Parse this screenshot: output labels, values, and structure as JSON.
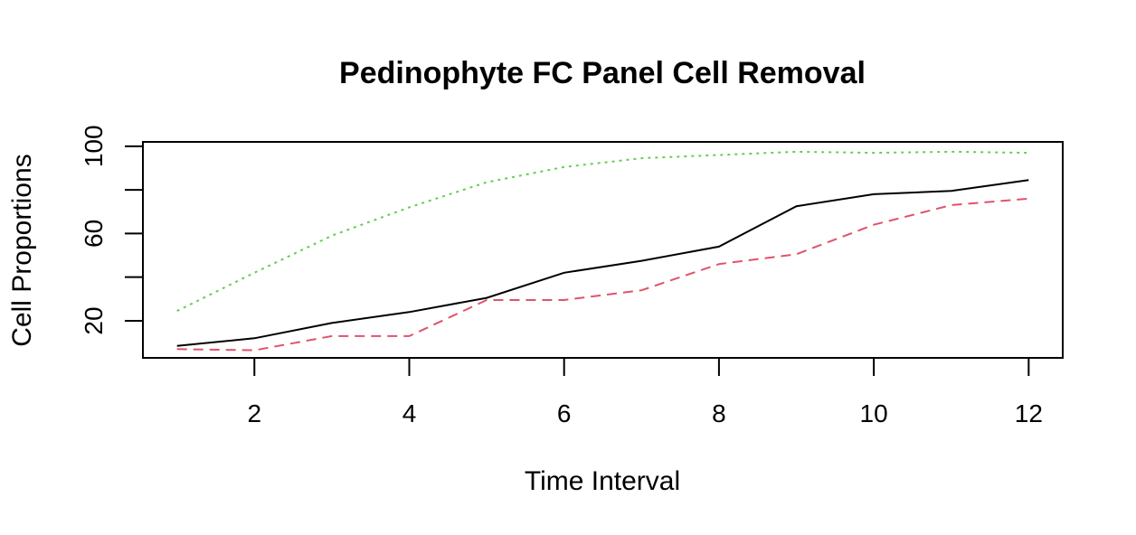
{
  "chart_data": {
    "type": "line",
    "title": "Pedinophyte FC Panel Cell Removal",
    "xlabel": "Time Interval",
    "ylabel": "Cell Proportions",
    "x": [
      1,
      2,
      3,
      4,
      5,
      6,
      7,
      8,
      9,
      10,
      11,
      12
    ],
    "xlim": [
      0.56,
      12.44
    ],
    "ylim": [
      3,
      102
    ],
    "x_ticks": [
      2,
      4,
      6,
      8,
      10,
      12
    ],
    "y_ticks": [
      20,
      40,
      60,
      80,
      100
    ],
    "y_tick_labels": [
      "20",
      "",
      "60",
      "",
      "100"
    ],
    "grid": false,
    "series": [
      {
        "values": [
          8.5,
          12,
          19,
          24,
          30.5,
          42,
          47.5,
          54,
          72.5,
          78,
          79.5,
          84.5
        ],
        "color": "#000000",
        "style": "solid"
      },
      {
        "values": [
          7,
          6.5,
          13,
          13,
          29.5,
          29.5,
          34,
          46,
          50.5,
          64,
          73,
          76
        ],
        "color": "#DF536B",
        "style": "dashed"
      },
      {
        "values": [
          24.5,
          42,
          59,
          72,
          83.5,
          90.5,
          94.5,
          96,
          97.5,
          97,
          97.5,
          97
        ],
        "color": "#61D04F",
        "style": "dotted"
      }
    ]
  }
}
